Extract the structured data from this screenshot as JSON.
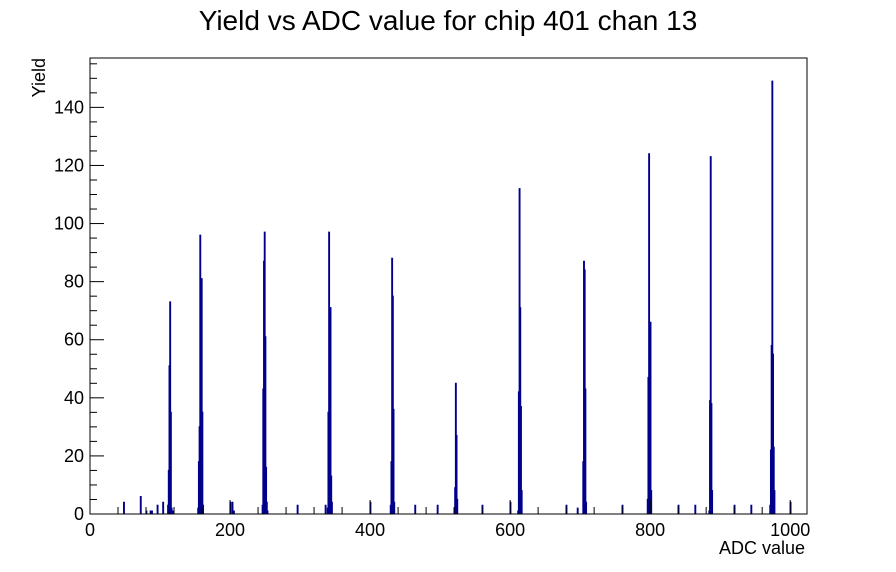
{
  "chart_data": {
    "type": "bar",
    "title": "Yield vs ADC value for chip 401 chan 13",
    "xlabel": "ADC value",
    "ylabel": "Yield",
    "xlim": [
      0,
      1024
    ],
    "ylim": [
      0,
      157
    ],
    "x_ticks": [
      0,
      200,
      400,
      600,
      800,
      1000
    ],
    "y_ticks": [
      0,
      20,
      40,
      60,
      80,
      100,
      120,
      140
    ],
    "grid": false,
    "legend": "none",
    "line_color": "#00008b",
    "bin_width": 1,
    "bins": [
      {
        "x": 48,
        "y": 4
      },
      {
        "x": 72,
        "y": 6
      },
      {
        "x": 80,
        "y": 1
      },
      {
        "x": 86,
        "y": 1
      },
      {
        "x": 88,
        "y": 1
      },
      {
        "x": 96,
        "y": 3
      },
      {
        "x": 104,
        "y": 4
      },
      {
        "x": 111,
        "y": 3
      },
      {
        "x": 112,
        "y": 15
      },
      {
        "x": 113,
        "y": 51
      },
      {
        "x": 114,
        "y": 73
      },
      {
        "x": 115,
        "y": 35
      },
      {
        "x": 116,
        "y": 2
      },
      {
        "x": 118,
        "y": 1
      },
      {
        "x": 154,
        "y": 2
      },
      {
        "x": 155,
        "y": 18
      },
      {
        "x": 156,
        "y": 30
      },
      {
        "x": 157,
        "y": 96
      },
      {
        "x": 158,
        "y": 57
      },
      {
        "x": 159,
        "y": 81
      },
      {
        "x": 160,
        "y": 35
      },
      {
        "x": 161,
        "y": 3
      },
      {
        "x": 200,
        "y": 4
      },
      {
        "x": 203,
        "y": 4
      },
      {
        "x": 205,
        "y": 1
      },
      {
        "x": 246,
        "y": 3
      },
      {
        "x": 247,
        "y": 43
      },
      {
        "x": 248,
        "y": 87
      },
      {
        "x": 249,
        "y": 97
      },
      {
        "x": 250,
        "y": 61
      },
      {
        "x": 251,
        "y": 16
      },
      {
        "x": 252,
        "y": 4
      },
      {
        "x": 253,
        "y": 1
      },
      {
        "x": 296,
        "y": 3
      },
      {
        "x": 336,
        "y": 3
      },
      {
        "x": 339,
        "y": 2
      },
      {
        "x": 340,
        "y": 35
      },
      {
        "x": 341,
        "y": 97
      },
      {
        "x": 342,
        "y": 62
      },
      {
        "x": 343,
        "y": 71
      },
      {
        "x": 344,
        "y": 13
      },
      {
        "x": 345,
        "y": 4
      },
      {
        "x": 400,
        "y": 4
      },
      {
        "x": 429,
        "y": 3
      },
      {
        "x": 430,
        "y": 18
      },
      {
        "x": 431,
        "y": 88
      },
      {
        "x": 432,
        "y": 75
      },
      {
        "x": 433,
        "y": 36
      },
      {
        "x": 434,
        "y": 4
      },
      {
        "x": 464,
        "y": 3
      },
      {
        "x": 496,
        "y": 3
      },
      {
        "x": 520,
        "y": 2
      },
      {
        "x": 521,
        "y": 9
      },
      {
        "x": 522,
        "y": 45
      },
      {
        "x": 523,
        "y": 27
      },
      {
        "x": 524,
        "y": 5
      },
      {
        "x": 560,
        "y": 3
      },
      {
        "x": 600,
        "y": 4
      },
      {
        "x": 611,
        "y": 1
      },
      {
        "x": 612,
        "y": 42
      },
      {
        "x": 613,
        "y": 112
      },
      {
        "x": 614,
        "y": 71
      },
      {
        "x": 615,
        "y": 37
      },
      {
        "x": 616,
        "y": 8
      },
      {
        "x": 680,
        "y": 3
      },
      {
        "x": 696,
        "y": 2
      },
      {
        "x": 704,
        "y": 18
      },
      {
        "x": 705,
        "y": 87
      },
      {
        "x": 706,
        "y": 84
      },
      {
        "x": 707,
        "y": 43
      },
      {
        "x": 708,
        "y": 4
      },
      {
        "x": 760,
        "y": 3
      },
      {
        "x": 796,
        "y": 5
      },
      {
        "x": 797,
        "y": 47
      },
      {
        "x": 798,
        "y": 124
      },
      {
        "x": 799,
        "y": 17
      },
      {
        "x": 800,
        "y": 66
      },
      {
        "x": 801,
        "y": 8
      },
      {
        "x": 840,
        "y": 3
      },
      {
        "x": 864,
        "y": 3
      },
      {
        "x": 884,
        "y": 1
      },
      {
        "x": 885,
        "y": 39
      },
      {
        "x": 886,
        "y": 123
      },
      {
        "x": 887,
        "y": 38
      },
      {
        "x": 888,
        "y": 8
      },
      {
        "x": 920,
        "y": 3
      },
      {
        "x": 944,
        "y": 3
      },
      {
        "x": 971,
        "y": 3
      },
      {
        "x": 972,
        "y": 22
      },
      {
        "x": 973,
        "y": 58
      },
      {
        "x": 974,
        "y": 149
      },
      {
        "x": 975,
        "y": 55
      },
      {
        "x": 976,
        "y": 23
      },
      {
        "x": 977,
        "y": 8
      },
      {
        "x": 1000,
        "y": 4
      }
    ]
  }
}
